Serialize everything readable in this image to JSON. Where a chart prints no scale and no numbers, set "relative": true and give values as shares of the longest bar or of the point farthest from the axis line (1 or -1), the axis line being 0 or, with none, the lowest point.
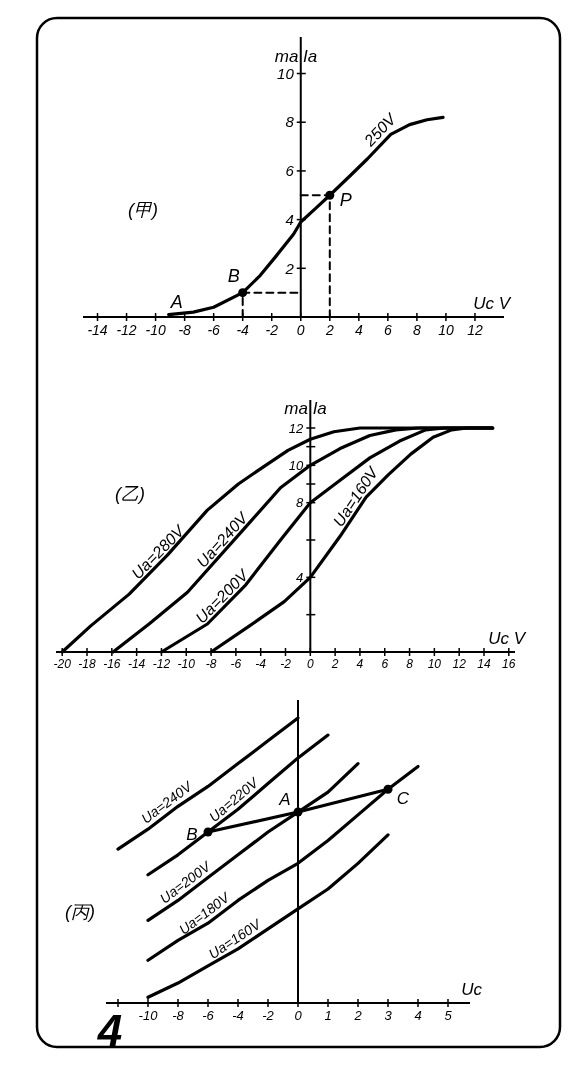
{
  "chart_data": [
    {
      "type": "line",
      "title": "(甲)",
      "xlabel": "Uc V",
      "ylabel": "ma Ia",
      "xlim": [
        -15,
        14
      ],
      "ylim": [
        0,
        11.5
      ],
      "xticks": [
        -14,
        -12,
        -10,
        -8,
        -6,
        -4,
        -2,
        0,
        2,
        4,
        6,
        8,
        10,
        12
      ],
      "yticks": [
        2,
        4,
        6,
        8,
        10
      ],
      "series": [
        {
          "name": "250V",
          "color": "#000000",
          "x": [
            -9.1,
            -7.4,
            -6,
            -4,
            -2.8,
            -1.7,
            -0.5,
            0,
            1.1,
            2,
            3.4,
            4.6,
            6.2,
            7.5,
            8.7,
            9.8
          ],
          "values": [
            0.1,
            0.2,
            0.4,
            1,
            1.7,
            2.5,
            3.4,
            3.9,
            4.5,
            5,
            5.8,
            6.5,
            7.5,
            7.9,
            8.1,
            8.2
          ]
        },
        {
          "color": "#000000",
          "line_style": "dashed",
          "x": [
            -4,
            -4,
            0
          ],
          "values": [
            0,
            1,
            1
          ]
        },
        {
          "color": "#000000",
          "line_style": "dashed",
          "x": [
            0,
            2,
            2
          ],
          "values": [
            5,
            5,
            0
          ]
        },
        {
          "type": "scatter",
          "color": "#000000",
          "marker": "circle",
          "x": [
            -4,
            2
          ],
          "values": [
            1,
            5
          ]
        }
      ],
      "annotations": [
        {
          "text": "A",
          "x": -9.1,
          "y": 0.1
        },
        {
          "text": "B",
          "x": -4,
          "y": 1
        },
        {
          "text": "P",
          "x": 2,
          "y": 5
        }
      ]
    },
    {
      "type": "line",
      "title": "(乙)",
      "xlabel": "Uc V",
      "ylabel": "ma Ia",
      "xlim": [
        -20.5,
        16.5
      ],
      "ylim": [
        0,
        13.5
      ],
      "xticks": [
        -20,
        -18,
        -16,
        -14,
        -12,
        -10,
        -8,
        -6,
        -4,
        -2,
        0,
        2,
        4,
        6,
        8,
        10,
        12,
        14,
        16
      ],
      "yticks": [
        {
          "value": 2,
          "label": null
        },
        4,
        {
          "value": 6,
          "label": null
        },
        8,
        {
          "value": 9,
          "label": null
        },
        10,
        {
          "value": 11,
          "label": null
        },
        12
      ],
      "series": [
        {
          "name": "Ua=280V",
          "color": "#000000",
          "x": [
            -20,
            -17.7,
            -14.6,
            -11.5,
            -8.3,
            -5.8,
            -3.6,
            -1.8,
            0,
            1.9,
            4,
            14.7
          ],
          "values": [
            0,
            1.4,
            3.1,
            5.2,
            7.6,
            9,
            10,
            10.8,
            11.4,
            11.8,
            12,
            12
          ]
        },
        {
          "name": "Ua=240V",
          "color": "#000000",
          "x": [
            -15.9,
            -13,
            -9.9,
            -5.2,
            -2.4,
            0,
            2.4,
            4.8,
            6.9,
            8.7,
            14.7
          ],
          "values": [
            0,
            1.5,
            3.2,
            6.7,
            8.8,
            10,
            10.9,
            11.6,
            11.9,
            12,
            12
          ]
        },
        {
          "name": "Ua=200V",
          "color": "#000000",
          "x": [
            -12,
            -8.3,
            -5.2,
            -2.4,
            0,
            2.4,
            4.8,
            7.2,
            9.3,
            10.8,
            14.7
          ],
          "values": [
            0,
            1.5,
            3.6,
            6,
            8,
            9.2,
            10.4,
            11.3,
            11.9,
            12,
            12
          ]
        },
        {
          "name": "Ua=160V",
          "color": "#000000",
          "x": [
            -8,
            -4.9,
            -2.1,
            0,
            2.4,
            4.5,
            6.3,
            8.1,
            9.9,
            11.4,
            12.6,
            14.7
          ],
          "values": [
            0,
            1.4,
            2.7,
            4,
            6.2,
            8.3,
            9.5,
            10.6,
            11.5,
            11.9,
            12,
            12
          ]
        }
      ]
    },
    {
      "type": "line",
      "title": "(丙)",
      "xlabel": "Uc",
      "relative": true,
      "categories": [
        null,
        "-10",
        "-8",
        "-6",
        "-4",
        "-2",
        "0",
        "1",
        "2",
        "3",
        "4",
        "5"
      ],
      "series": [
        {
          "name": "Ua=240V",
          "color": "#000000",
          "values": [
            0.54,
            0.61,
            0.69,
            0.76,
            0.84,
            0.92,
            1,
            null,
            null,
            null,
            null,
            null
          ]
        },
        {
          "name": "Ua=220V",
          "color": "#000000",
          "values": [
            null,
            0.45,
            0.52,
            0.6,
            0.68,
            0.77,
            0.86,
            0.94,
            null,
            null,
            null,
            null
          ]
        },
        {
          "name": "Ua=200V",
          "color": "#000000",
          "values": [
            null,
            0.29,
            0.36,
            0.44,
            0.52,
            0.6,
            0.67,
            0.74,
            0.84,
            null,
            null,
            null
          ]
        },
        {
          "name": "Ua=180V",
          "color": "#000000",
          "values": [
            null,
            0.15,
            0.22,
            0.28,
            0.36,
            0.43,
            0.49,
            0.57,
            0.66,
            0.75,
            0.83,
            null
          ]
        },
        {
          "name": "Ua=160V",
          "color": "#000000",
          "values": [
            null,
            0.02,
            0.07,
            0.13,
            0.19,
            0.26,
            0.33,
            0.4,
            0.49,
            0.59,
            null,
            null
          ]
        },
        {
          "color": "#000000",
          "x": [
            "-6",
            "0",
            "3"
          ],
          "values": [
            0.6,
            0.67,
            0.75
          ]
        },
        {
          "type": "scatter",
          "color": "#000000",
          "marker": "circle",
          "x": [
            "-6",
            "0",
            "3"
          ],
          "values": [
            0.6,
            0.67,
            0.75
          ]
        }
      ],
      "annotations": [
        {
          "text": "B",
          "x": "-6",
          "y": 0.6
        },
        {
          "text": "A",
          "x": "0",
          "y": 0.67
        },
        {
          "text": "C",
          "x": "3",
          "y": 0.75
        },
        "4"
      ]
    }
  ]
}
